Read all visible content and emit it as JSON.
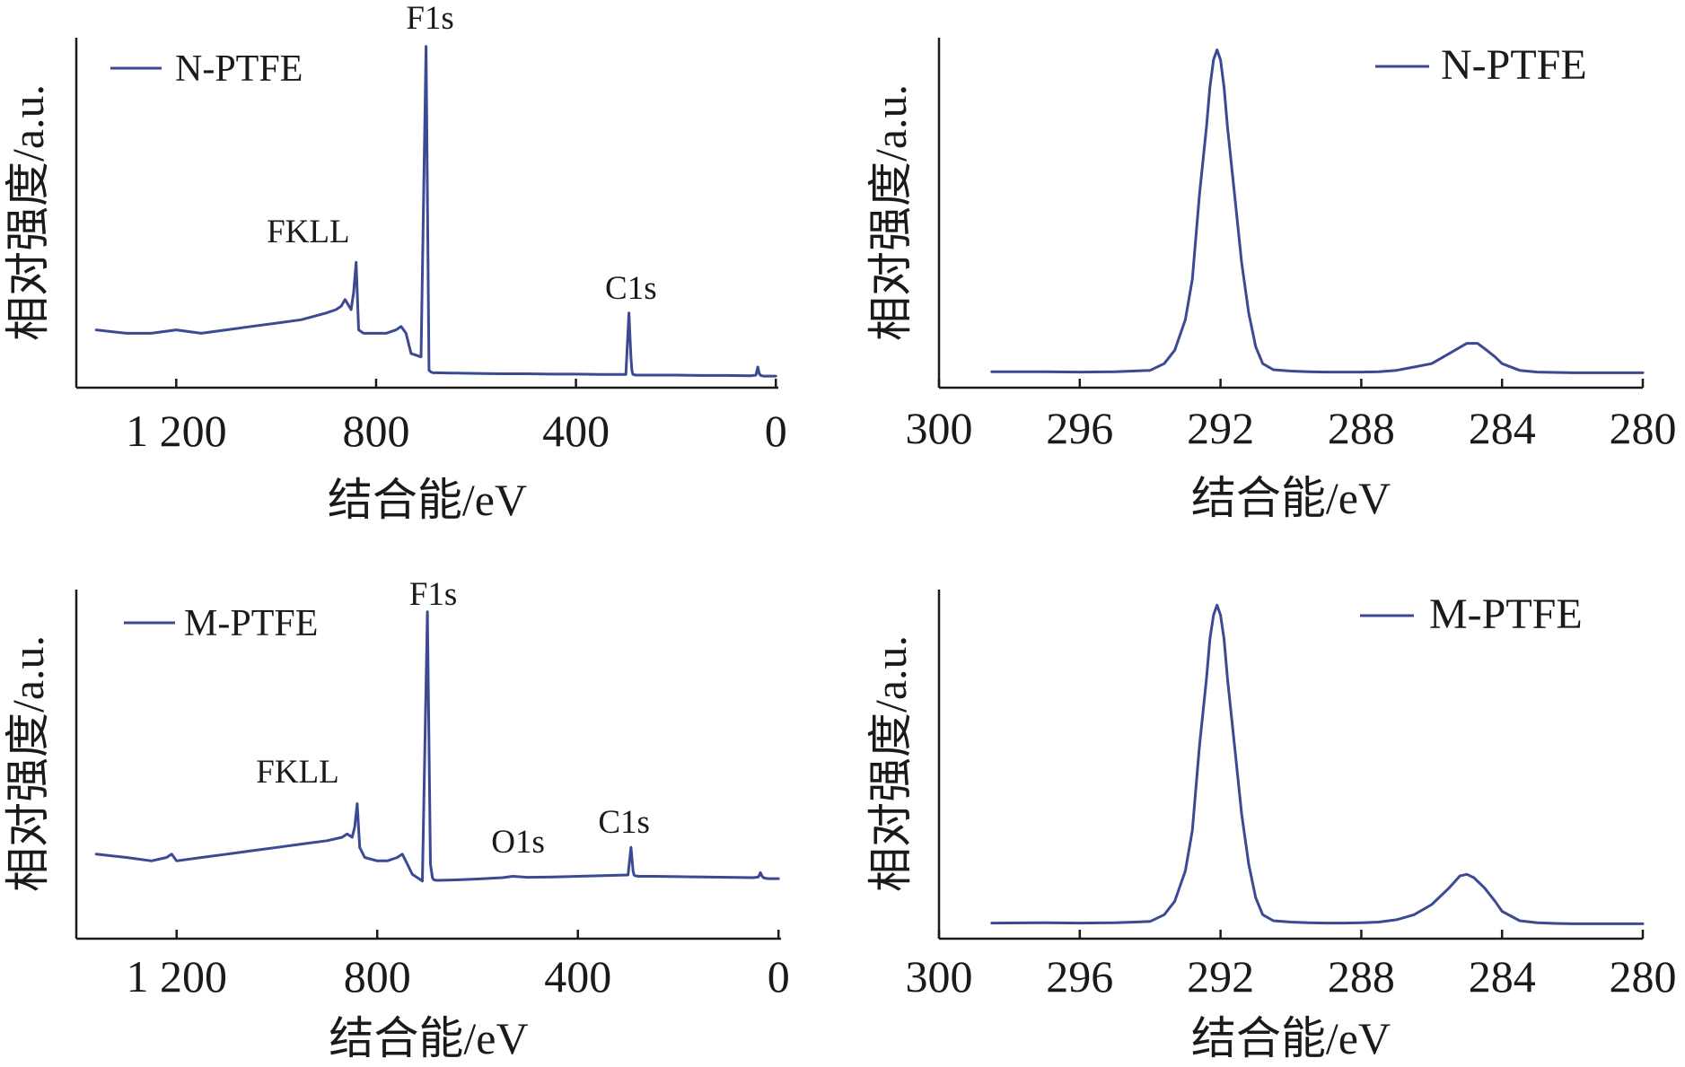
{
  "colors": {
    "series": "#3b4a93",
    "axis": "#1a1a1a"
  },
  "chart_data": [
    {
      "type": "line",
      "panel": "top-left",
      "xlabel": "结合能/eV",
      "ylabel": "相对强度/a.u.",
      "xlim": [
        1400,
        -5
      ],
      "ylim": [
        0,
        100
      ],
      "x_reversed": true,
      "xticks": [
        1200,
        800,
        400,
        0
      ],
      "xtick_labels": [
        "1 200",
        "800",
        "400",
        "0"
      ],
      "legend": {
        "position": "top-left"
      },
      "series": [
        {
          "name": "N-PTFE",
          "x": [
            1360,
            1300,
            1250,
            1200,
            1150,
            1100,
            1050,
            1000,
            950,
            900,
            880,
            870,
            862,
            850,
            845,
            840,
            835,
            825,
            800,
            780,
            760,
            750,
            740,
            730,
            710,
            700,
            694,
            690,
            688,
            686,
            680,
            650,
            600,
            550,
            500,
            450,
            400,
            350,
            300,
            294,
            290,
            288,
            286,
            280,
            250,
            200,
            150,
            100,
            50,
            40,
            36,
            33,
            30,
            25,
            20,
            0
          ],
          "y": [
            15,
            14,
            14,
            15,
            14,
            15,
            16,
            17,
            18,
            20,
            21,
            22,
            24,
            21,
            26,
            35,
            15,
            14,
            14,
            14,
            15,
            16,
            14,
            8,
            7,
            99,
            3,
            2.5,
            2.4,
            2.3,
            2.3,
            2.2,
            2.1,
            2.0,
            2.0,
            1.9,
            1.9,
            1.8,
            1.8,
            20,
            7,
            3,
            1.8,
            1.6,
            1.6,
            1.6,
            1.5,
            1.5,
            1.4,
            1.6,
            4,
            2,
            1.5,
            1.3,
            1.3,
            1.3
          ]
        }
      ],
      "annotations": [
        {
          "text": "F1s",
          "x": 692
        },
        {
          "text": "FKLL",
          "x": 855
        },
        {
          "text": "C1s",
          "x": 290
        }
      ]
    },
    {
      "type": "line",
      "panel": "top-right",
      "xlabel": "结合能/eV",
      "ylabel": "相对强度/a.u.",
      "xlim": [
        300,
        280
      ],
      "ylim": [
        0,
        100
      ],
      "x_reversed": true,
      "xticks": [
        300,
        296,
        292,
        288,
        284,
        280
      ],
      "xtick_labels": [
        "300",
        "296",
        "292",
        "288",
        "284",
        "280"
      ],
      "legend": {
        "position": "top-right"
      },
      "series": [
        {
          "name": "N-PTFE",
          "x": [
            298.5,
            297,
            296,
            295,
            294,
            293.6,
            293.3,
            293,
            292.8,
            292.6,
            292.4,
            292.3,
            292.2,
            292.1,
            292.0,
            291.9,
            291.8,
            291.6,
            291.4,
            291.2,
            291.0,
            290.8,
            290.5,
            290.0,
            289.5,
            289.0,
            288.5,
            288.0,
            287.5,
            287.0,
            286.5,
            286.0,
            285.5,
            285.0,
            284.7,
            284.5,
            284.2,
            284.0,
            283.5,
            283.0,
            282.5,
            282.0,
            281.0,
            280.0
          ],
          "y": [
            2.6,
            2.6,
            2.5,
            2.6,
            3,
            5,
            9,
            18,
            30,
            55,
            75,
            87,
            95,
            98,
            95,
            87,
            75,
            55,
            35,
            20,
            10,
            5,
            3.2,
            2.8,
            2.6,
            2.5,
            2.5,
            2.5,
            2.6,
            3,
            4,
            5,
            8,
            11,
            11,
            9.5,
            7,
            5,
            3,
            2.5,
            2.4,
            2.3,
            2.3,
            2.3
          ]
        }
      ]
    },
    {
      "type": "line",
      "panel": "bottom-left",
      "xlabel": "结合能/eV",
      "ylabel": "相对强度/a.u.",
      "xlim": [
        1400,
        -5
      ],
      "ylim": [
        0,
        100
      ],
      "x_reversed": true,
      "xticks": [
        1200,
        800,
        400,
        0
      ],
      "xtick_labels": [
        "1 200",
        "800",
        "400",
        "0"
      ],
      "legend": {
        "position": "top-left"
      },
      "series": [
        {
          "name": "M-PTFE",
          "x": [
            1360,
            1300,
            1250,
            1220,
            1210,
            1200,
            1150,
            1100,
            1050,
            1000,
            950,
            900,
            870,
            860,
            850,
            845,
            840,
            835,
            825,
            800,
            780,
            760,
            750,
            740,
            730,
            710,
            700,
            694,
            690,
            688,
            686,
            680,
            650,
            600,
            550,
            530,
            500,
            450,
            400,
            350,
            300,
            294,
            290,
            288,
            286,
            280,
            250,
            200,
            150,
            100,
            50,
            40,
            36,
            33,
            30,
            25,
            20,
            0
          ],
          "y": [
            23,
            22,
            21,
            22,
            23,
            21,
            22,
            23,
            24,
            25,
            26,
            27,
            28,
            29,
            28,
            31,
            38,
            25,
            22,
            21,
            21,
            22,
            23,
            20,
            17,
            15,
            95,
            20,
            16,
            15.5,
            15.3,
            15.2,
            15.3,
            15.6,
            16,
            16.4,
            16.1,
            16.2,
            16.4,
            16.6,
            16.8,
            25,
            18,
            16.8,
            16.6,
            16.4,
            16.4,
            16.3,
            16.2,
            16.1,
            16.0,
            16.2,
            17.5,
            16.5,
            16.0,
            15.8,
            15.7,
            15.7
          ]
        }
      ],
      "annotations": [
        {
          "text": "F1s",
          "x": 692
        },
        {
          "text": "FKLL",
          "x": 855
        },
        {
          "text": "O1s",
          "x": 530
        },
        {
          "text": "C1s",
          "x": 290
        }
      ]
    },
    {
      "type": "line",
      "panel": "bottom-right",
      "xlabel": "结合能/eV",
      "ylabel": "相对强度/a.u.",
      "xlim": [
        300,
        280
      ],
      "ylim": [
        0,
        100
      ],
      "x_reversed": true,
      "xticks": [
        300,
        296,
        292,
        288,
        284,
        280
      ],
      "xtick_labels": [
        "300",
        "296",
        "292",
        "288",
        "284",
        "280"
      ],
      "legend": {
        "position": "top-right"
      },
      "series": [
        {
          "name": "M-PTFE",
          "x": [
            298.5,
            297,
            296,
            295,
            294,
            293.6,
            293.3,
            293,
            292.8,
            292.6,
            292.4,
            292.3,
            292.2,
            292.1,
            292.0,
            291.9,
            291.8,
            291.6,
            291.4,
            291.2,
            291.0,
            290.8,
            290.5,
            290.0,
            289.5,
            289.0,
            288.5,
            288.0,
            287.5,
            287.0,
            286.5,
            286.0,
            285.5,
            285.2,
            285.0,
            284.8,
            284.5,
            284.2,
            284.0,
            283.5,
            283.0,
            282.5,
            282.0,
            281.0,
            280.0
          ],
          "y": [
            2.5,
            2.6,
            2.5,
            2.6,
            3,
            5,
            9,
            18,
            30,
            55,
            75,
            87,
            94,
            97,
            94,
            87,
            75,
            55,
            35,
            20,
            10,
            5,
            3.2,
            2.8,
            2.6,
            2.5,
            2.5,
            2.6,
            2.8,
            3.5,
            5,
            8,
            13,
            16.5,
            17,
            16,
            13,
            9,
            6,
            3.2,
            2.6,
            2.4,
            2.3,
            2.3,
            2.3
          ]
        }
      ]
    }
  ]
}
